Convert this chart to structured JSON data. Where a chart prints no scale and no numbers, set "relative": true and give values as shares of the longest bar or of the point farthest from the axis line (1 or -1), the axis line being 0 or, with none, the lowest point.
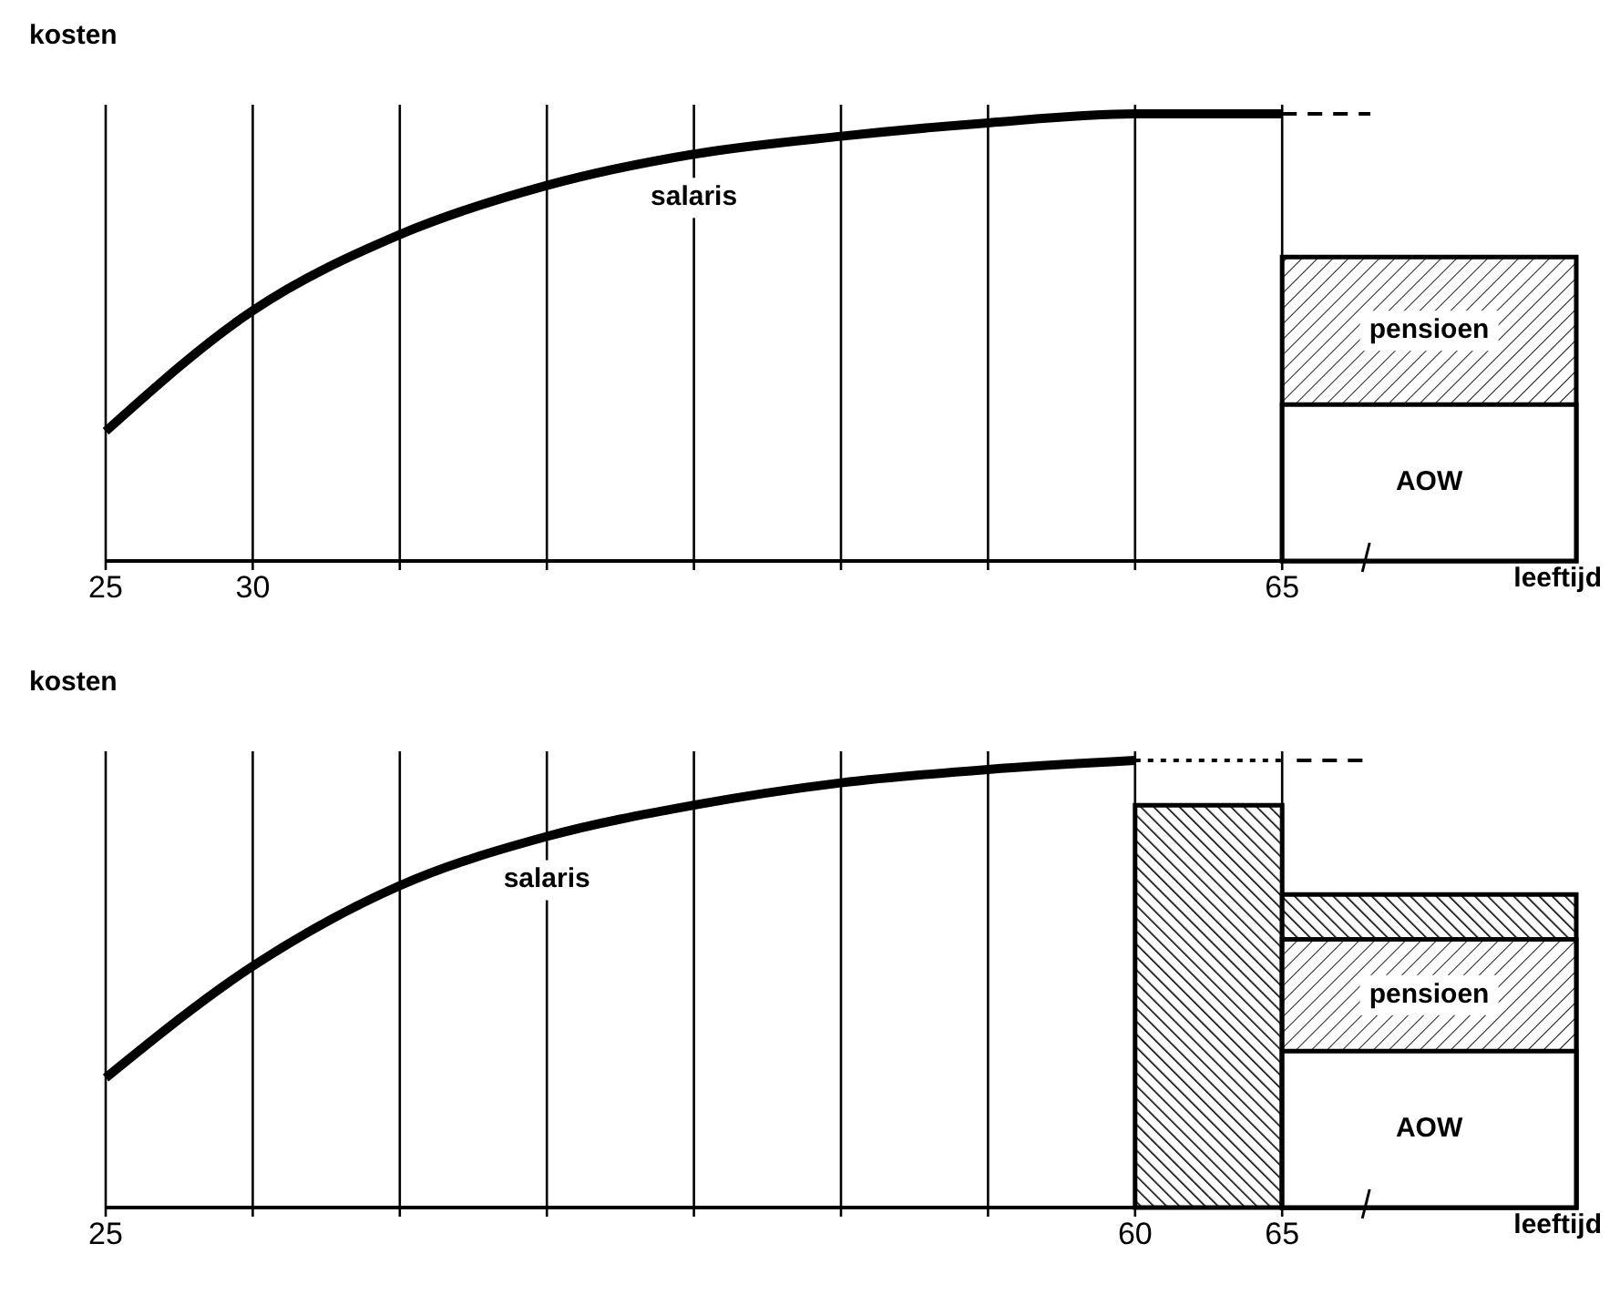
{
  "chart_data": [
    {
      "type": "line",
      "relative": true,
      "legend": false,
      "xlabel": "leeftijd",
      "ylabel": "kosten",
      "xlim": [
        25,
        75
      ],
      "xticks": [
        25,
        30,
        {
          "value": 35,
          "label": null
        },
        {
          "value": 40,
          "label": null
        },
        {
          "value": 45,
          "label": null
        },
        {
          "value": 50,
          "label": null
        },
        {
          "value": 55,
          "label": null
        },
        {
          "value": 60,
          "label": null
        },
        65
      ],
      "grid": "x",
      "series": [
        {
          "name": "salaris",
          "color": "#000000",
          "x": [
            25,
            30,
            35,
            40,
            45,
            50,
            55,
            60,
            65
          ],
          "values": [
            0.29,
            0.56,
            0.73,
            0.84,
            0.91,
            0.95,
            0.98,
            1,
            1
          ]
        },
        {
          "color": "#000000",
          "line_style": "dashed",
          "x": [
            65,
            68
          ],
          "values": [
            1,
            1
          ]
        },
        {
          "name": "pensioen",
          "type": "area",
          "color": "#000000",
          "x": [
            65,
            75
          ],
          "values": [
            0.68,
            0.68
          ]
        },
        {
          "name": "AOW",
          "type": "area",
          "color": "#ffffff",
          "x": [
            65,
            75
          ],
          "values": [
            0.35,
            0.35
          ]
        }
      ]
    },
    {
      "type": "line",
      "relative": true,
      "legend": false,
      "xlabel": "leeftijd",
      "ylabel": "kosten",
      "xlim": [
        25,
        75
      ],
      "xticks": [
        25,
        {
          "value": 30,
          "label": null
        },
        {
          "value": 35,
          "label": null
        },
        {
          "value": 40,
          "label": null
        },
        {
          "value": 45,
          "label": null
        },
        {
          "value": 50,
          "label": null
        },
        {
          "value": 55,
          "label": null
        },
        60,
        65
      ],
      "grid": "x",
      "series": [
        {
          "name": "salaris",
          "color": "#000000",
          "x": [
            25,
            30,
            35,
            40,
            45,
            50,
            55,
            60
          ],
          "values": [
            0.29,
            0.54,
            0.72,
            0.83,
            0.9,
            0.95,
            0.98,
            1
          ]
        },
        {
          "color": "#000000",
          "line_style": "dotted",
          "x": [
            60,
            65
          ],
          "values": [
            1,
            1
          ]
        },
        {
          "color": "#000000",
          "line_style": "dashed",
          "x": [
            65.5,
            68
          ],
          "values": [
            1,
            1
          ]
        },
        {
          "type": "area",
          "color": "#000000",
          "x": [
            60,
            65
          ],
          "values": [
            0.9,
            0.9
          ]
        },
        {
          "type": "area",
          "color": "#000000",
          "x": [
            65,
            75
          ],
          "values": [
            0.7,
            0.7
          ]
        },
        {
          "name": "pensioen",
          "type": "area",
          "color": "#000000",
          "x": [
            65,
            75
          ],
          "values": [
            0.6,
            0.6
          ]
        },
        {
          "name": "AOW",
          "type": "area",
          "color": "#ffffff",
          "x": [
            65,
            75
          ],
          "values": [
            0.35,
            0.35
          ]
        }
      ]
    }
  ]
}
